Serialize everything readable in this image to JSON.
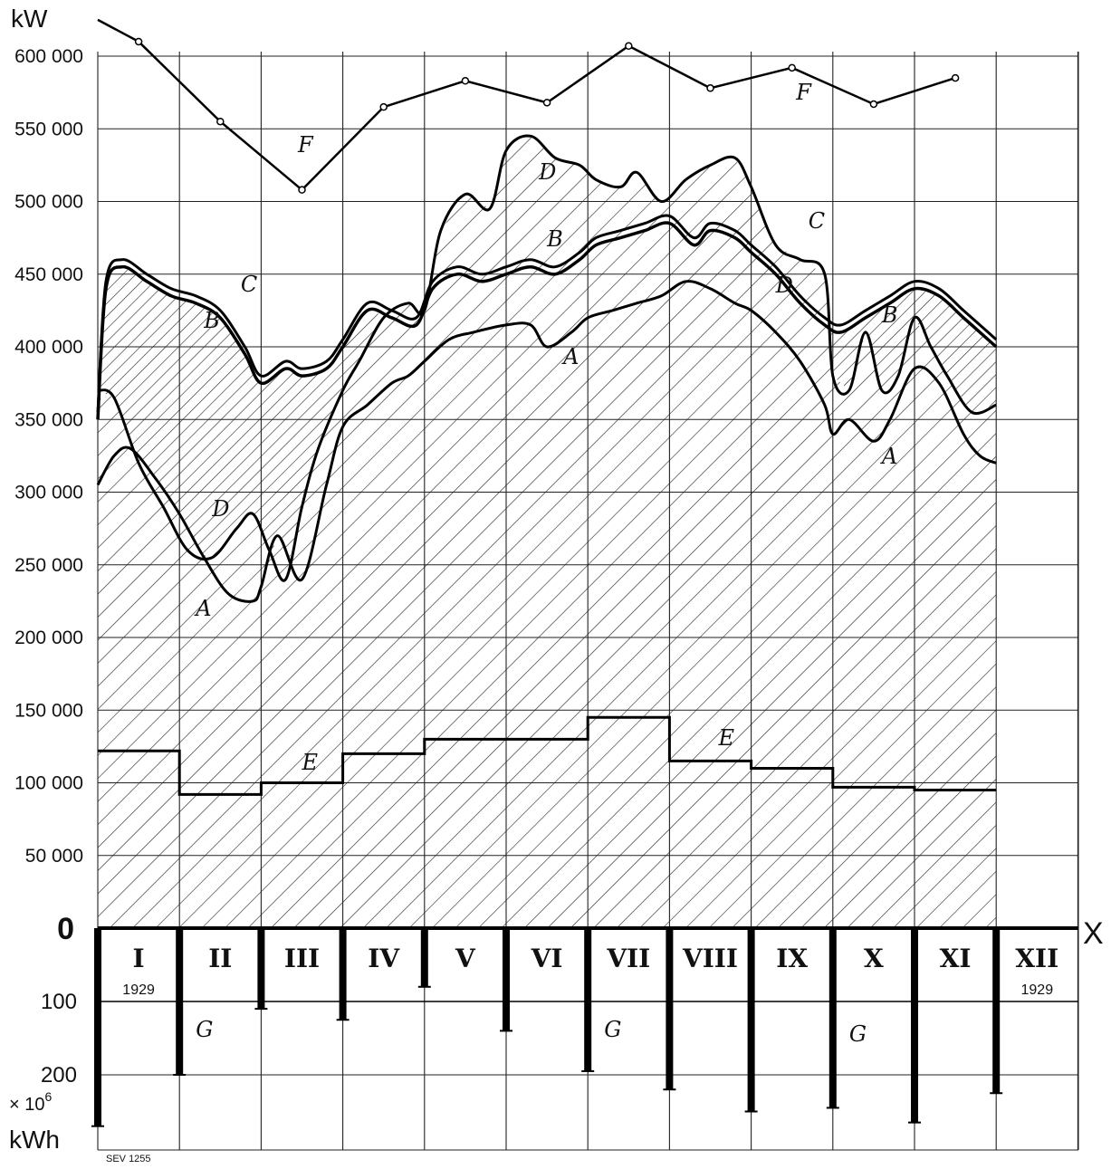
{
  "chart_data": {
    "type": "line",
    "y_unit_top": "kW",
    "y_ticks": [
      "600 000",
      "550 000",
      "500 000",
      "450 000",
      "400 000",
      "350 000",
      "300 000",
      "250 000",
      "200 000",
      "150 000",
      "100 000",
      "50 000",
      "0"
    ],
    "y_tick_values": [
      600000,
      550000,
      500000,
      450000,
      400000,
      350000,
      300000,
      250000,
      200000,
      150000,
      100000,
      50000,
      0
    ],
    "ylim": [
      0,
      600000
    ],
    "x_axis_label": "X",
    "months": [
      "I",
      "II",
      "III",
      "IV",
      "V",
      "VI",
      "VII",
      "VIII",
      "IX",
      "X",
      "XI",
      "XII"
    ],
    "year_labels": {
      "first": "1929",
      "last": "1929"
    },
    "series": [
      {
        "name": "A",
        "x": [
          0,
          0.2,
          0.4,
          0.7,
          1.0,
          1.3,
          1.6,
          1.9,
          2.0,
          2.2,
          2.5,
          2.8,
          3.0,
          3.3,
          3.6,
          3.8,
          4.0,
          4.3,
          4.6,
          5.0,
          5.3,
          5.5,
          5.8,
          6.0,
          6.3,
          6.6,
          6.9,
          7.2,
          7.5,
          7.8,
          8.0,
          8.3,
          8.6,
          8.9,
          9.0,
          9.2,
          9.5,
          9.7,
          10.0,
          10.3,
          10.6,
          10.8,
          11.0
        ],
        "y": [
          305000,
          325000,
          330000,
          310000,
          285000,
          255000,
          230000,
          225000,
          235000,
          270000,
          240000,
          305000,
          345000,
          360000,
          375000,
          380000,
          390000,
          405000,
          410000,
          415000,
          415000,
          400000,
          410000,
          420000,
          425000,
          430000,
          435000,
          445000,
          440000,
          430000,
          425000,
          410000,
          390000,
          360000,
          340000,
          350000,
          335000,
          350000,
          385000,
          375000,
          340000,
          325000,
          320000
        ]
      },
      {
        "name": "B",
        "x": [
          0,
          0.1,
          0.3,
          0.6,
          0.9,
          1.2,
          1.5,
          1.8,
          2.0,
          2.3,
          2.5,
          2.8,
          3.0,
          3.3,
          3.6,
          3.9,
          4.1,
          4.4,
          4.7,
          5.0,
          5.3,
          5.6,
          5.9,
          6.1,
          6.4,
          6.7,
          7.0,
          7.3,
          7.5,
          7.8,
          8.0,
          8.3,
          8.6,
          8.9,
          9.1,
          9.4,
          9.7,
          10.0,
          10.3,
          10.6,
          10.9,
          11.0
        ],
        "y": [
          350000,
          440000,
          455000,
          445000,
          435000,
          430000,
          420000,
          395000,
          375000,
          385000,
          380000,
          385000,
          400000,
          425000,
          420000,
          415000,
          440000,
          450000,
          445000,
          450000,
          455000,
          450000,
          460000,
          470000,
          475000,
          480000,
          485000,
          470000,
          480000,
          475000,
          465000,
          450000,
          430000,
          415000,
          410000,
          420000,
          430000,
          440000,
          435000,
          420000,
          405000,
          400000
        ]
      },
      {
        "name": "C",
        "x": [
          0,
          0.1,
          0.3,
          0.6,
          0.9,
          1.2,
          1.5,
          1.8,
          2.0,
          2.3,
          2.5,
          2.8,
          3.0,
          3.3,
          3.6,
          3.9,
          4.1,
          4.4,
          4.7,
          5.0,
          5.3,
          5.6,
          5.9,
          6.1,
          6.4,
          6.7,
          7.0,
          7.3,
          7.5,
          7.8,
          8.0,
          8.3,
          8.6,
          8.9,
          9.1,
          9.4,
          9.7,
          10.0,
          10.3,
          10.6,
          10.9,
          11.0
        ],
        "y": [
          355000,
          445000,
          460000,
          450000,
          440000,
          435000,
          425000,
          400000,
          380000,
          390000,
          385000,
          390000,
          405000,
          430000,
          425000,
          420000,
          445000,
          455000,
          450000,
          455000,
          460000,
          455000,
          465000,
          475000,
          480000,
          485000,
          490000,
          475000,
          485000,
          480000,
          470000,
          455000,
          435000,
          420000,
          415000,
          425000,
          435000,
          445000,
          440000,
          425000,
          410000,
          405000
        ]
      },
      {
        "name": "D",
        "x": [
          0,
          0.2,
          0.5,
          0.8,
          1.1,
          1.4,
          1.7,
          1.9,
          2.1,
          2.3,
          2.5,
          2.7,
          3.0,
          3.2,
          3.5,
          3.8,
          4.0,
          4.2,
          4.5,
          4.8,
          5.0,
          5.3,
          5.6,
          5.9,
          6.1,
          6.4,
          6.6,
          6.9,
          7.2,
          7.5,
          7.8,
          8.0,
          8.3,
          8.6,
          8.9,
          9.0,
          9.2,
          9.4,
          9.6,
          9.8,
          10.0,
          10.2,
          10.4,
          10.7,
          11.0
        ],
        "y": [
          370000,
          365000,
          320000,
          290000,
          260000,
          255000,
          275000,
          285000,
          260000,
          240000,
          290000,
          330000,
          370000,
          390000,
          420000,
          430000,
          425000,
          480000,
          505000,
          495000,
          535000,
          545000,
          530000,
          525000,
          515000,
          510000,
          520000,
          500000,
          515000,
          525000,
          530000,
          510000,
          470000,
          460000,
          450000,
          380000,
          370000,
          410000,
          370000,
          380000,
          420000,
          400000,
          380000,
          355000,
          360000
        ]
      },
      {
        "name": "E",
        "x": [
          0,
          1,
          1,
          2,
          2,
          3,
          3,
          4,
          4,
          5,
          5,
          6,
          6,
          7,
          7,
          8,
          8,
          9,
          9,
          10,
          10,
          11
        ],
        "y": [
          122000,
          122000,
          92000,
          92000,
          100000,
          100000,
          120000,
          120000,
          130000,
          130000,
          130000,
          130000,
          145000,
          145000,
          115000,
          115000,
          110000,
          110000,
          97000,
          97000,
          95000,
          95000
        ]
      },
      {
        "name": "F",
        "x": [
          0,
          0.5,
          1.5,
          2.5,
          3.5,
          4.5,
          5.5,
          6.5,
          7.5,
          8.5,
          9.5,
          10.5
        ],
        "y": [
          625000,
          610000,
          555000,
          508000,
          565000,
          583000,
          568000,
          607000,
          578000,
          592000,
          567000,
          585000
        ]
      },
      {
        "name": "G",
        "unit": "×10⁶ kWh",
        "categories": [
          "I",
          "II",
          "III",
          "IV",
          "V",
          "VI",
          "VII",
          "VIII",
          "IX",
          "X",
          "XI",
          "XII"
        ],
        "values": [
          270,
          200,
          110,
          125,
          80,
          140,
          195,
          220,
          250,
          245,
          265,
          225
        ]
      }
    ],
    "curve_labels": [
      "A",
      "A",
      "A",
      "B",
      "B",
      "B",
      "C",
      "C",
      "D",
      "D",
      "D",
      "E",
      "E",
      "F",
      "F",
      "G",
      "G",
      "G"
    ],
    "lower_ticks": [
      "100",
      "200"
    ],
    "lower_tick_values": [
      100,
      200
    ],
    "lower_unit_line1": "× 10",
    "lower_unit_sup": "6",
    "lower_unit_line2": "kWh",
    "stamp": "SEV 1255"
  }
}
